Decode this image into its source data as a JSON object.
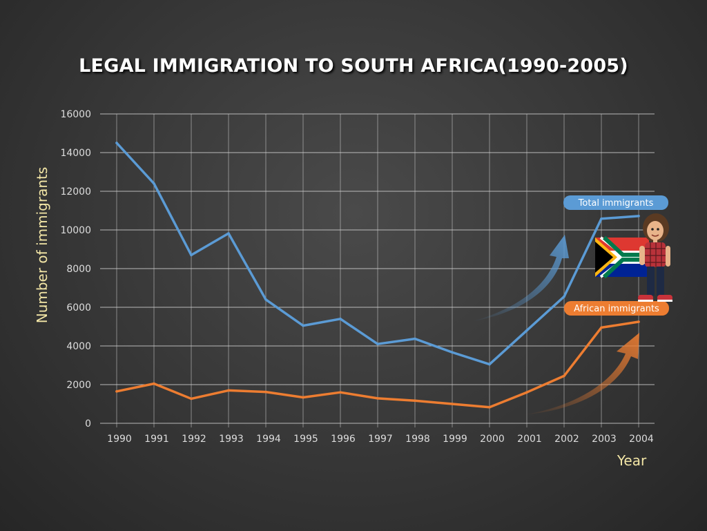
{
  "chart_data": {
    "type": "line",
    "title": "LEGAL IMMIGRATION TO SOUTH AFRICA(1990-2005)",
    "xlabel": "Year",
    "ylabel": "Number of immigrants",
    "categories": [
      "1990",
      "1991",
      "1992",
      "1993",
      "1994",
      "1995",
      "1996",
      "1997",
      "1998",
      "1999",
      "2000",
      "2001",
      "2002",
      "2003",
      "2004"
    ],
    "y_ticks": [
      "0",
      "2000",
      "4000",
      "6000",
      "8000",
      "10000",
      "12000",
      "14000",
      "16000"
    ],
    "ylim": [
      0,
      16000
    ],
    "grid": true,
    "series": [
      {
        "name": "Total immigrants",
        "color": "#5b9bd5",
        "values": [
          14500,
          12400,
          8700,
          9820,
          6400,
          5050,
          5400,
          4100,
          4370,
          3670,
          3050,
          4800,
          6550,
          10580,
          10720
        ]
      },
      {
        "name": "African immigrants",
        "color": "#ed7d31",
        "values": [
          1650,
          2050,
          1270,
          1700,
          1620,
          1340,
          1600,
          1290,
          1170,
          1000,
          830,
          1600,
          2450,
          4950,
          5250
        ]
      }
    ]
  },
  "colors": {
    "axis_label": "#f3e6a6",
    "grid": "#d0d0d0",
    "callout_total": "#5b9bd5",
    "callout_african": "#ed7d31"
  },
  "decorations": {
    "flag_icon": "south-africa-flag-icon",
    "character_icon": "cartoon-girl-icon"
  }
}
